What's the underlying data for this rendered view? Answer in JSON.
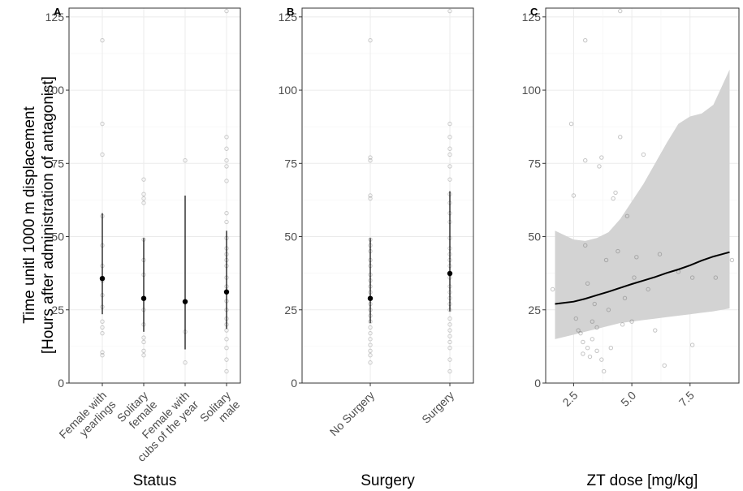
{
  "ylabel_line1": "Time unitl 1000 m displacement",
  "ylabel_line2": "[Hours after administration of antagonist]",
  "colors": {
    "point": "#000000",
    "raw": "#555555",
    "ribbon": "#d3d3d3",
    "grid": "#ebebeb",
    "frame": "#333333",
    "text": "#4d4d4d"
  },
  "chart_data": [
    {
      "panel": "A",
      "type": "scatter",
      "xlabel": "Status",
      "ylim": [
        0,
        128
      ],
      "yticks": [
        0,
        25,
        50,
        75,
        100,
        125
      ],
      "categories": [
        "Female with\nyearlings",
        "Solitary\nfemale",
        "Female with\ncubs of the year",
        "Solitary\nmale"
      ],
      "estimates": [
        {
          "category": "Female with\nyearlings",
          "mean": 35.7,
          "lower": 23.5,
          "upper": 58
        },
        {
          "category": "Solitary\nfemale",
          "mean": 28.9,
          "lower": 17.5,
          "upper": 49.5
        },
        {
          "category": "Female with\ncubs of the year",
          "mean": 27.8,
          "lower": 11.5,
          "upper": 64
        },
        {
          "category": "Solitary\nmale",
          "mean": 31.1,
          "lower": 18.5,
          "upper": 52
        }
      ],
      "raw_points": [
        {
          "category": "Female with\nyearlings",
          "values": [
            117,
            88.5,
            78,
            57,
            47,
            40,
            35,
            30,
            26,
            21,
            19,
            17,
            10.5,
            9.5
          ]
        },
        {
          "category": "Solitary\nfemale",
          "values": [
            69.5,
            64.5,
            63,
            61.5,
            49,
            42,
            37,
            29,
            25,
            20,
            15.5,
            14,
            11,
            9.5
          ]
        },
        {
          "category": "Female with\ncubs of the year",
          "values": [
            76,
            27.5,
            17.5,
            7
          ]
        },
        {
          "category": "Solitary\nmale",
          "values": [
            127,
            84,
            80,
            76,
            74,
            69,
            58,
            55,
            49.5,
            46,
            44,
            42,
            40,
            36,
            33,
            31,
            28,
            25,
            22,
            20,
            18,
            15,
            12,
            8,
            4
          ]
        }
      ]
    },
    {
      "panel": "B",
      "type": "scatter",
      "xlabel": "Surgery",
      "ylim": [
        0,
        128
      ],
      "yticks": [
        0,
        25,
        50,
        75,
        100,
        125
      ],
      "categories": [
        "No Surgery",
        "Surgery"
      ],
      "estimates": [
        {
          "category": "No Surgery",
          "mean": 28.9,
          "lower": 20.5,
          "upper": 49.5
        },
        {
          "category": "Surgery",
          "mean": 37.4,
          "lower": 24.5,
          "upper": 65.5
        }
      ],
      "raw_points": [
        {
          "category": "No Surgery",
          "values": [
            117,
            77,
            76,
            64,
            63,
            49,
            47,
            45,
            42,
            40,
            37,
            35,
            33,
            31,
            29,
            27,
            25,
            23,
            21,
            19,
            17,
            15,
            13,
            11,
            9.5,
            7
          ]
        },
        {
          "category": "Surgery",
          "values": [
            127,
            88.5,
            84,
            80,
            78,
            74,
            69.5,
            64.5,
            61.5,
            58,
            55,
            49.5,
            46,
            44,
            42,
            40,
            36,
            33,
            31,
            29,
            27,
            25,
            22,
            20,
            18,
            16,
            14,
            12,
            8,
            4
          ]
        }
      ]
    },
    {
      "panel": "C",
      "type": "line",
      "xlabel": "ZT dose [mg/kg]",
      "xlim": [
        1.3,
        9.6
      ],
      "ylim": [
        0,
        128
      ],
      "xticks": [
        2.5,
        5.0,
        7.5
      ],
      "xtick_labels": [
        "2.5",
        "5.0",
        "7.5"
      ],
      "yticks": [
        0,
        25,
        50,
        75,
        100,
        125
      ],
      "fit": {
        "x": [
          1.7,
          2.5,
          3.0,
          3.5,
          4.0,
          4.5,
          5.0,
          5.5,
          6.0,
          6.5,
          7.0,
          7.5,
          8.0,
          8.5,
          9.2
        ],
        "y": [
          27,
          27.8,
          28.8,
          30,
          31.2,
          32.5,
          33.8,
          35,
          36.2,
          37.6,
          38.8,
          40.2,
          41.8,
          43.2,
          44.7
        ],
        "lower": [
          15,
          16.5,
          17.5,
          18.5,
          19.5,
          20.5,
          21,
          21.5,
          22,
          22.5,
          23,
          23.5,
          24,
          24.5,
          25.5
        ],
        "upper": [
          52,
          49,
          48.5,
          49.5,
          51.5,
          56,
          62,
          68,
          75,
          82,
          88.5,
          91,
          92,
          95,
          107
        ]
      },
      "points": [
        {
          "x": 1.6,
          "y": 32
        },
        {
          "x": 2.4,
          "y": 88.5
        },
        {
          "x": 2.5,
          "y": 64
        },
        {
          "x": 2.6,
          "y": 22
        },
        {
          "x": 2.7,
          "y": 18
        },
        {
          "x": 2.8,
          "y": 17
        },
        {
          "x": 2.9,
          "y": 14
        },
        {
          "x": 2.9,
          "y": 10
        },
        {
          "x": 3.0,
          "y": 117
        },
        {
          "x": 3.0,
          "y": 76
        },
        {
          "x": 3.0,
          "y": 47
        },
        {
          "x": 3.1,
          "y": 34
        },
        {
          "x": 3.1,
          "y": 12
        },
        {
          "x": 3.2,
          "y": 9
        },
        {
          "x": 3.3,
          "y": 21
        },
        {
          "x": 3.3,
          "y": 15
        },
        {
          "x": 3.4,
          "y": 27
        },
        {
          "x": 3.5,
          "y": 19
        },
        {
          "x": 3.5,
          "y": 11
        },
        {
          "x": 3.6,
          "y": 74
        },
        {
          "x": 3.7,
          "y": 77
        },
        {
          "x": 3.7,
          "y": 8
        },
        {
          "x": 3.8,
          "y": 4
        },
        {
          "x": 3.9,
          "y": 42
        },
        {
          "x": 4.0,
          "y": 25
        },
        {
          "x": 4.1,
          "y": 12
        },
        {
          "x": 4.2,
          "y": 63
        },
        {
          "x": 4.3,
          "y": 65
        },
        {
          "x": 4.4,
          "y": 45
        },
        {
          "x": 4.5,
          "y": 127
        },
        {
          "x": 4.5,
          "y": 84
        },
        {
          "x": 4.6,
          "y": 20
        },
        {
          "x": 4.7,
          "y": 29
        },
        {
          "x": 4.8,
          "y": 57
        },
        {
          "x": 5.0,
          "y": 21
        },
        {
          "x": 5.1,
          "y": 36
        },
        {
          "x": 5.2,
          "y": 43
        },
        {
          "x": 5.5,
          "y": 78
        },
        {
          "x": 5.7,
          "y": 32
        },
        {
          "x": 6.0,
          "y": 18
        },
        {
          "x": 6.2,
          "y": 44
        },
        {
          "x": 6.4,
          "y": 6
        },
        {
          "x": 7.0,
          "y": 38
        },
        {
          "x": 7.6,
          "y": 13
        },
        {
          "x": 7.6,
          "y": 36
        },
        {
          "x": 8.6,
          "y": 36
        },
        {
          "x": 9.3,
          "y": 42
        }
      ]
    }
  ]
}
